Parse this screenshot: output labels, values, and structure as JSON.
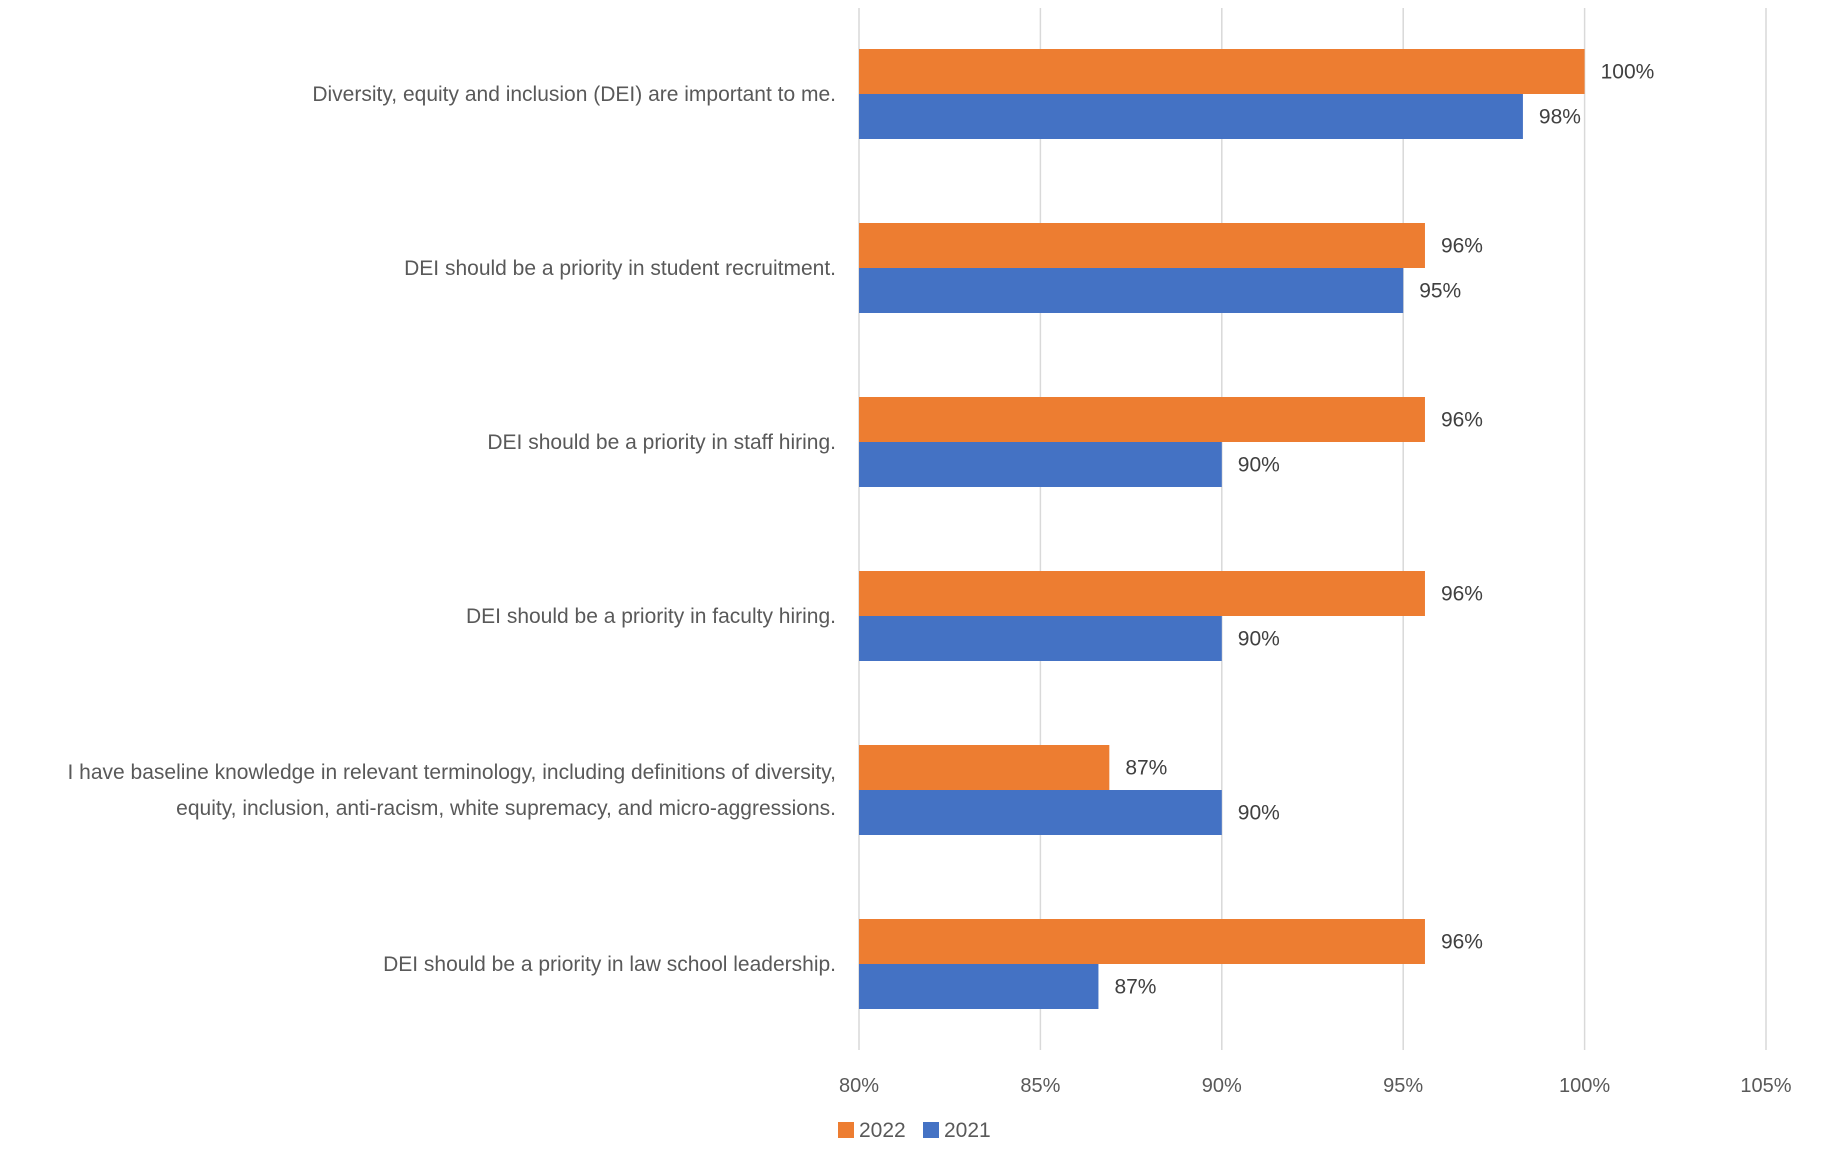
{
  "chart_data": {
    "type": "bar",
    "orientation": "horizontal",
    "title": "",
    "xlabel": "",
    "ylabel": "",
    "xlim": [
      0.8,
      1.05
    ],
    "x_ticks": [
      0.8,
      0.85,
      0.9,
      0.95,
      1.0,
      1.05
    ],
    "x_tick_labels": [
      "80%",
      "85%",
      "90%",
      "95%",
      "100%",
      "105%"
    ],
    "grid": true,
    "legend_position": "bottom",
    "categories": [
      "Diversity, equity and inclusion (DEI) are important to me.",
      "DEI should be a priority in student recruitment.",
      "DEI should be a priority in staff hiring.",
      "DEI should be a priority in faculty hiring.",
      "I have baseline knowledge in relevant terminology, including definitions of diversity, equity, inclusion, anti-racism, white supremacy, and micro-aggressions.",
      "DEI should be a priority in law school leadership."
    ],
    "category_lines": [
      [
        "Diversity, equity and inclusion (DEI) are important to me."
      ],
      [
        "DEI should be a priority in student recruitment."
      ],
      [
        "DEI should be a priority in staff hiring."
      ],
      [
        "DEI should be a priority in faculty hiring."
      ],
      [
        "I have baseline knowledge in relevant terminology, including definitions of diversity,",
        "equity, inclusion, anti-racism, white supremacy, and micro-aggressions."
      ],
      [
        "DEI should be a priority in law school leadership."
      ]
    ],
    "series": [
      {
        "name": "2022",
        "color": "#ED7D31",
        "values": [
          1.0,
          0.956,
          0.956,
          0.956,
          0.869,
          0.956
        ],
        "labels": [
          "100%",
          "96%",
          "96%",
          "96%",
          "87%",
          "96%"
        ]
      },
      {
        "name": "2021",
        "color": "#4472C4",
        "values": [
          0.983,
          0.95,
          0.9,
          0.9,
          0.9,
          0.866
        ],
        "labels": [
          "98%",
          "95%",
          "90%",
          "90%",
          "90%",
          "87%"
        ]
      }
    ]
  }
}
